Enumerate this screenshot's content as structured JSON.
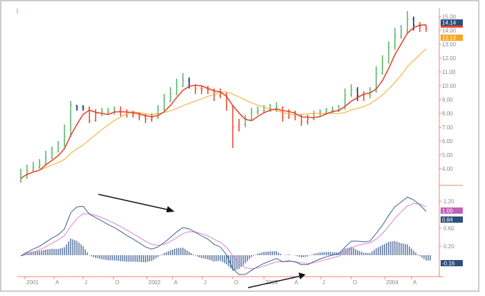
{
  "chart_data": [
    {
      "type": "bar",
      "subtype": "ohlc-price",
      "y_axis_ticks": [
        "15.00",
        "14.00",
        "13.00",
        "12.00",
        "11.00",
        "10.00",
        "9.00",
        "8.00",
        "7.00",
        "6.00",
        "5.00",
        "4.00"
      ],
      "ylim": [
        3,
        15.5
      ],
      "x_axis_ticks": [
        "2001",
        "A",
        "J",
        "O",
        "2002",
        "A",
        "J",
        "O",
        "2003",
        "A",
        "J",
        "O",
        "2004",
        "A"
      ],
      "close": [
        3.3,
        3.9,
        4.1,
        4.3,
        4.8,
        5.2,
        5.5,
        6.3,
        8.6,
        8.45,
        8.4,
        7.5,
        8.0,
        8.1,
        8.1,
        8.2,
        8.1,
        8.0,
        7.95,
        7.8,
        7.6,
        7.7,
        8.3,
        8.9,
        9.4,
        10.0,
        10.4,
        10.0,
        9.8,
        9.75,
        9.7,
        9.3,
        9.45,
        8.5,
        7.0,
        7.2,
        7.6,
        8.1,
        8.2,
        8.3,
        8.35,
        8.45,
        7.7,
        8.1,
        7.8,
        7.4,
        7.6,
        8.0,
        8.1,
        8.2,
        8.25,
        8.3,
        9.3,
        9.7,
        9.3,
        9.3,
        9.6,
        10.9,
        11.7,
        12.8,
        13.6,
        14.0,
        14.8,
        14.4,
        14.3,
        14.14
      ],
      "high": [
        4.0,
        4.3,
        4.5,
        4.7,
        5.3,
        5.6,
        6.0,
        7.2,
        8.9,
        8.6,
        8.6,
        8.5,
        8.3,
        8.4,
        8.4,
        8.5,
        8.5,
        8.3,
        8.2,
        8.1,
        8.0,
        8.0,
        8.6,
        9.4,
        9.9,
        10.5,
        10.9,
        10.6,
        10.1,
        10.0,
        10.0,
        9.8,
        9.8,
        9.5,
        8.6,
        7.6,
        7.9,
        8.4,
        8.5,
        8.6,
        8.7,
        8.8,
        8.5,
        8.3,
        8.2,
        7.9,
        7.9,
        8.2,
        8.3,
        8.4,
        8.5,
        8.6,
        9.8,
        10.1,
        9.9,
        9.6,
        9.9,
        11.4,
        12.2,
        13.2,
        14.2,
        14.4,
        15.4,
        15.0,
        14.6,
        14.4
      ],
      "low": [
        3.0,
        3.3,
        3.8,
        4.0,
        4.3,
        4.7,
        5.2,
        5.6,
        6.3,
        8.2,
        8.2,
        7.3,
        7.4,
        7.8,
        7.9,
        7.9,
        7.8,
        7.7,
        7.7,
        7.5,
        7.3,
        7.4,
        7.6,
        8.2,
        8.8,
        9.3,
        9.9,
        9.8,
        9.4,
        9.4,
        9.4,
        8.9,
        9.1,
        8.2,
        5.5,
        6.7,
        7.0,
        7.5,
        7.9,
        8.0,
        8.1,
        8.1,
        7.4,
        7.6,
        7.5,
        7.1,
        7.2,
        7.5,
        7.8,
        7.9,
        8.0,
        8.1,
        8.3,
        9.2,
        8.9,
        8.9,
        9.1,
        9.5,
        10.8,
        11.6,
        12.6,
        13.4,
        13.8,
        14.0,
        13.9,
        13.9
      ],
      "moving_averages": [
        {
          "label": "13.13",
          "color": "#f5a623"
        },
        {
          "label": "14.14",
          "color": "#e8432e"
        }
      ],
      "last_price_label": "14.14",
      "colors": {
        "up": "#7cc48a",
        "neutral": "#3a5a8c",
        "down": "#e8705a",
        "axis": "#f08070"
      }
    },
    {
      "type": "line",
      "subtype": "macd",
      "y_axis_ticks": [
        "1.20",
        "0.60",
        "0.20"
      ],
      "labels": {
        "signal": "1.00",
        "macd": "0.84",
        "histogram": "-0.16"
      },
      "colors": {
        "macd": "#3a5a8c",
        "signal": "#d97fd0",
        "histogram": "#3a5a8c"
      },
      "annotations": [
        "down-arrow-divergence",
        "up-arrow-divergence"
      ]
    }
  ]
}
